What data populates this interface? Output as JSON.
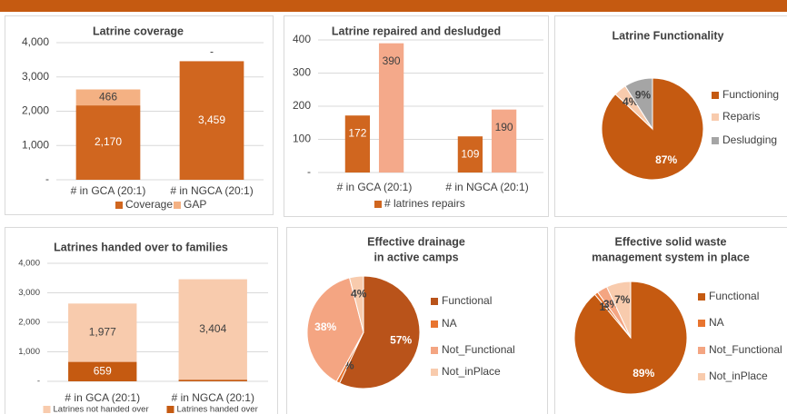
{
  "chart_data": [
    {
      "type": "stacked_bar",
      "title": "Latrine coverage",
      "categories": [
        "# in GCA (20:1)",
        "# in NGCA (20:1)"
      ],
      "series": [
        {
          "name": "Coverage",
          "color": "#d0661f",
          "values": [
            2170,
            3459
          ],
          "value_labels": [
            "2,170",
            "3,459"
          ]
        },
        {
          "name": "GAP",
          "color": "#f4b183",
          "values": [
            466,
            0
          ],
          "value_labels": [
            "466",
            "-"
          ]
        }
      ],
      "ylim": [
        0,
        4000
      ],
      "yticks": [
        {
          "value": 0,
          "label": "-"
        },
        {
          "value": 1000,
          "label": "1,000"
        },
        {
          "value": 2000,
          "label": "2,000"
        },
        {
          "value": 3000,
          "label": "3,000"
        },
        {
          "value": 4000,
          "label": "4,000"
        }
      ],
      "grid": true
    },
    {
      "type": "grouped_bar",
      "title": "Latrine repaired and desludged",
      "categories": [
        "# in GCA (20:1)",
        "# in NGCA (20:1)"
      ],
      "series": [
        {
          "name": "# latrines repairs",
          "color": "#d0661f",
          "values": [
            172,
            109
          ]
        },
        {
          "color": "#f4a98a",
          "values": [
            390,
            190
          ]
        }
      ],
      "ylim": [
        0,
        400
      ],
      "yticks": [
        {
          "value": 0,
          "label": "-"
        },
        100,
        200,
        300,
        400
      ],
      "grid": true
    },
    {
      "type": "pie",
      "title": "Latrine Functionality",
      "categories": [
        "Functioning",
        "Reparis",
        "Desludging"
      ],
      "values": [
        87,
        4,
        9
      ],
      "value_labels": [
        "87%",
        "4%",
        "9%"
      ],
      "colors": [
        "#c55a11",
        "#f8cbad",
        "#a5a5a5"
      ]
    },
    {
      "type": "stacked_bar",
      "title": "Latrines handed over to families",
      "categories": [
        "# in GCA (20:1)",
        "# in NGCA (20:1)"
      ],
      "series": [
        {
          "name": "Latrines handed over",
          "color": "#c55a11",
          "values": [
            659,
            55
          ]
        },
        {
          "name": "Latrines not handed over",
          "color": "#f8cbad",
          "values": [
            1977,
            3404
          ],
          "value_labels": [
            "1,977",
            "3,404"
          ]
        }
      ],
      "ylim": [
        0,
        4000
      ],
      "yticks": [
        {
          "value": 0,
          "label": "-"
        },
        {
          "value": 1000,
          "label": "1,000"
        },
        {
          "value": 2000,
          "label": "2,000"
        },
        {
          "value": 3000,
          "label": "3,000"
        },
        {
          "value": 4000,
          "label": "4,000"
        }
      ],
      "grid": true
    },
    {
      "type": "pie",
      "title": [
        "Effective drainage",
        "in active camps"
      ],
      "categories": [
        "Functional",
        "NA",
        "Not_Functional",
        "Not_inPlace"
      ],
      "values": [
        57,
        1,
        38,
        4
      ],
      "value_labels": [
        "57%",
        "1%",
        "38%",
        "4%"
      ],
      "colors": [
        "#b9531a",
        "#e8742f",
        "#f4a582",
        "#f8cbad"
      ]
    },
    {
      "type": "pie",
      "title": [
        "Effective solid waste",
        "management system in place"
      ],
      "categories": [
        "Functional",
        "NA",
        "Not_Functional",
        "Not_inPlace"
      ],
      "values": [
        89,
        1,
        3,
        7
      ],
      "value_labels": [
        "89%",
        "1%",
        "3%",
        "7%"
      ],
      "colors": [
        "#c55a11",
        "#e8742f",
        "#f4a582",
        "#f8cbad"
      ]
    }
  ]
}
